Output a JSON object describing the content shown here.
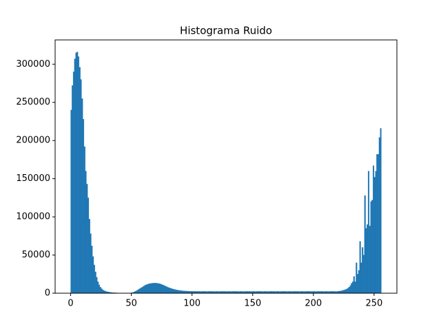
{
  "chart_data": {
    "type": "histogram",
    "title": "Histograma Ruido",
    "color": "#1f77b4",
    "bins": [
      0,
      1,
      2,
      3,
      4,
      5,
      6,
      7,
      8,
      9,
      10,
      11,
      12,
      13,
      14,
      15,
      16,
      17,
      18,
      19,
      20,
      21,
      22,
      23,
      24,
      25,
      26,
      27,
      28,
      29,
      30,
      31,
      32,
      33,
      34,
      35,
      36,
      37,
      38,
      39,
      40,
      41,
      42,
      43,
      44,
      45,
      46,
      47,
      48,
      49,
      50,
      51,
      52,
      53,
      54,
      55,
      56,
      57,
      58,
      59,
      60,
      61,
      62,
      63,
      64,
      65,
      66,
      67,
      68,
      69,
      70,
      71,
      72,
      73,
      74,
      75,
      76,
      77,
      78,
      79,
      80,
      81,
      82,
      83,
      84,
      85,
      86,
      87,
      88,
      89,
      90,
      91,
      92,
      93,
      94,
      95,
      96,
      97,
      98,
      99,
      100,
      101,
      102,
      103,
      104,
      105,
      106,
      107,
      108,
      109,
      110,
      111,
      112,
      113,
      114,
      115,
      116,
      117,
      118,
      119,
      120,
      121,
      122,
      123,
      124,
      125,
      126,
      127,
      128,
      129,
      130,
      131,
      132,
      133,
      134,
      135,
      136,
      137,
      138,
      139,
      140,
      141,
      142,
      143,
      144,
      145,
      146,
      147,
      148,
      149,
      150,
      151,
      152,
      153,
      154,
      155,
      156,
      157,
      158,
      159,
      160,
      161,
      162,
      163,
      164,
      165,
      166,
      167,
      168,
      169,
      170,
      171,
      172,
      173,
      174,
      175,
      176,
      177,
      178,
      179,
      180,
      181,
      182,
      183,
      184,
      185,
      186,
      187,
      188,
      189,
      190,
      191,
      192,
      193,
      194,
      195,
      196,
      197,
      198,
      199,
      200,
      201,
      202,
      203,
      204,
      205,
      206,
      207,
      208,
      209,
      210,
      211,
      212,
      213,
      214,
      215,
      216,
      217,
      218,
      219,
      220,
      221,
      222,
      223,
      224,
      225,
      226,
      227,
      228,
      229,
      230,
      231,
      232,
      233,
      234,
      235,
      236,
      237,
      238,
      239,
      240,
      241,
      242,
      243,
      244,
      245,
      246,
      247,
      248,
      249,
      250,
      251,
      252,
      253,
      254,
      255,
      256
    ],
    "counts": [
      240000,
      272000,
      290000,
      307000,
      315000,
      316000,
      310000,
      296000,
      280000,
      255000,
      228000,
      192000,
      160000,
      143000,
      125000,
      97000,
      78000,
      62000,
      48000,
      37000,
      28000,
      21000,
      15000,
      11000,
      8000,
      6000,
      4500,
      3500,
      2800,
      2200,
      1800,
      1500,
      1200,
      1000,
      800,
      700,
      600,
      500,
      400,
      300,
      250,
      200,
      150,
      120,
      100,
      100,
      100,
      150,
      200,
      400,
      700,
      1200,
      1800,
      2600,
      3500,
      4500,
      5500,
      6500,
      7500,
      8500,
      9500,
      10500,
      11200,
      11800,
      12300,
      12600,
      12900,
      13100,
      13200,
      13300,
      13200,
      13000,
      12700,
      12300,
      11800,
      11200,
      10500,
      9800,
      9000,
      8300,
      7600,
      7000,
      6400,
      5900,
      5400,
      5000,
      4600,
      4300,
      4000,
      3700,
      3500,
      3300,
      3100,
      3000,
      2900,
      2800,
      2700,
      2600,
      2600,
      2500,
      2500,
      2400,
      2400,
      2300,
      2500,
      2300,
      2400,
      2200,
      2400,
      2300,
      2400,
      2300,
      2200,
      2400,
      2300,
      2500,
      2300,
      2400,
      2200,
      2300,
      2400,
      2300,
      2200,
      2400,
      2300,
      2500,
      2300,
      2400,
      2200,
      2300,
      2400,
      2300,
      2200,
      2400,
      2300,
      2500,
      2300,
      2400,
      2200,
      2300,
      2400,
      2300,
      2200,
      2400,
      2300,
      2500,
      2300,
      2400,
      2200,
      2300,
      2400,
      2300,
      2200,
      2400,
      2300,
      2500,
      2300,
      2400,
      2200,
      2300,
      2400,
      2300,
      2200,
      2400,
      2300,
      2500,
      2300,
      2400,
      2200,
      2300,
      2400,
      2300,
      2200,
      2400,
      2300,
      2500,
      2300,
      2400,
      2200,
      2300,
      2400,
      2300,
      2200,
      2400,
      2300,
      2500,
      2300,
      2400,
      2200,
      2300,
      2400,
      2300,
      2200,
      2400,
      2300,
      2500,
      2300,
      2400,
      2200,
      2300,
      2400,
      2300,
      2200,
      2400,
      2300,
      2500,
      2300,
      2400,
      2200,
      2300,
      2400,
      2300,
      2200,
      2400,
      2300,
      2500,
      2300,
      2400,
      2200,
      2300,
      2600,
      2800,
      3000,
      3300,
      3700,
      4200,
      4800,
      5500,
      6500,
      8000,
      10000,
      13000,
      15000,
      22000,
      15000,
      40000,
      25000,
      30000,
      68000,
      40000,
      60000,
      50000,
      128000,
      85000,
      90000,
      160000,
      88000,
      120000,
      122000,
      167000,
      152000,
      160000,
      182000,
      182000,
      204000,
      216000
    ],
    "xlim": [
      -12.8,
      268.8
    ],
    "xticks": [
      0,
      50,
      100,
      150,
      200,
      250
    ],
    "ylim": [
      0,
      331800
    ],
    "yticks": [
      0,
      50000,
      100000,
      150000,
      200000,
      250000,
      300000
    ]
  }
}
